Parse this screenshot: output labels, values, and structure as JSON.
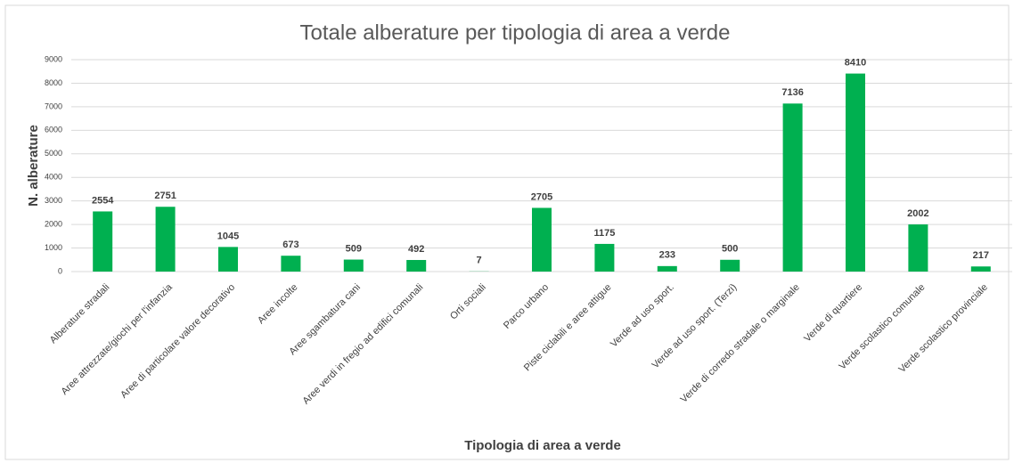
{
  "chart_data": {
    "type": "bar",
    "title": "Totale alberature per tipologia di area a verde",
    "x_label": "Tipologia di area a verde",
    "y_label": "N. alberature",
    "categories": [
      "Alberature stradali",
      "Aree attrezzate/giochi per l'infanzia",
      "Aree di particolare valore decorativo",
      "Aree incolte",
      "Aree sgambatura cani",
      "Aree verdi in fregio ad edifici comunali",
      "Orti sociali",
      "Parco urbano",
      "Piste ciclabili e aree attigue",
      "Verde ad uso sport.",
      "Verde ad uso sport. (Terzi)",
      "Verde di corredo stradale o marginale",
      "Verde di quartiere",
      "Verde scolastico comunale",
      "Verde scolastico provinciale"
    ],
    "values": [
      2554,
      2751,
      1045,
      673,
      509,
      492,
      7,
      2705,
      1175,
      233,
      500,
      7136,
      8410,
      2002,
      217
    ],
    "color": "#00b050",
    "ylim": [
      0,
      9000
    ],
    "yticks": [
      0,
      1000,
      2000,
      3000,
      4000,
      5000,
      6000,
      7000,
      8000,
      9000
    ],
    "grid": true
  }
}
